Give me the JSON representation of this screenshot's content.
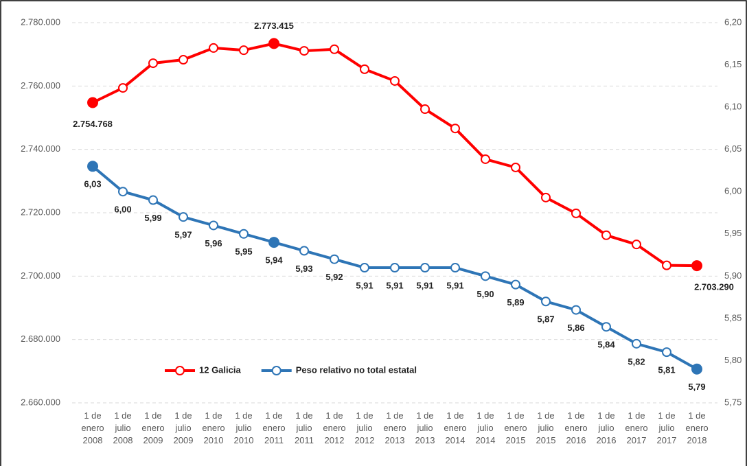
{
  "chart_data": {
    "type": "line",
    "categories": [
      "1 de enero 2008",
      "1 de julio 2008",
      "1 de enero 2009",
      "1 de julio 2009",
      "1 de enero 2010",
      "1 de julio 2010",
      "1 de enero 2011",
      "1 de julio 2011",
      "1 de enero 2012",
      "1 de julio 2012",
      "1 de enero 2013",
      "1 de julio 2013",
      "1 de enero 2014",
      "1 de julio 2014",
      "1 de enero 2015",
      "1 de julio 2015",
      "1 de enero 2016",
      "1 de julio 2016",
      "1 de enero 2017",
      "1 de julio 2017",
      "1 de enero 2018"
    ],
    "series": [
      {
        "name": "12 Galicia",
        "color": "#ff0000",
        "values": [
          2754768,
          2759400,
          2767200,
          2768300,
          2772000,
          2771300,
          2773415,
          2771100,
          2771600,
          2765300,
          2761600,
          2752700,
          2746600,
          2736900,
          2734300,
          2724800,
          2719800,
          2712900,
          2710000,
          2703400,
          2703290
        ],
        "value_labels": [
          "2.754.768",
          null,
          null,
          null,
          null,
          null,
          "2.773.415",
          null,
          null,
          null,
          null,
          null,
          null,
          null,
          null,
          null,
          null,
          null,
          null,
          null,
          "2.703.290"
        ],
        "highlight": [
          0,
          6,
          20
        ]
      },
      {
        "name": "Peso relativo no total estatal",
        "color": "#2e75b6",
        "axis": "y2",
        "values": [
          6.03,
          6.0,
          5.99,
          5.97,
          5.96,
          5.95,
          5.94,
          5.93,
          5.92,
          5.91,
          5.91,
          5.91,
          5.91,
          5.9,
          5.89,
          5.87,
          5.86,
          5.84,
          5.82,
          5.81,
          5.79
        ],
        "value_labels": [
          "6,03",
          "6,00",
          "5,99",
          "5,97",
          "5,96",
          "5,95",
          "5,94",
          "5,93",
          "5,92",
          "5,91",
          "5,91",
          "5,91",
          "5,91",
          "5,90",
          "5,89",
          "5,87",
          "5,86",
          "5,84",
          "5,82",
          "5,81",
          "5,79"
        ],
        "highlight": [
          0,
          6,
          20
        ]
      }
    ],
    "ylim": [
      2660000,
      2780000
    ],
    "yticks": [
      {
        "value": 2660000,
        "label": "2.660.000"
      },
      {
        "value": 2680000,
        "label": "2.680.000"
      },
      {
        "value": 2700000,
        "label": "2.700.000"
      },
      {
        "value": 2720000,
        "label": "2.720.000"
      },
      {
        "value": 2740000,
        "label": "2.740.000"
      },
      {
        "value": 2760000,
        "label": "2.760.000"
      },
      {
        "value": 2780000,
        "label": "2.780.000"
      }
    ],
    "y2lim": [
      5.75,
      6.2
    ],
    "y2ticks": [
      {
        "value": 5.75,
        "label": "5,75"
      },
      {
        "value": 5.8,
        "label": "5,80"
      },
      {
        "value": 5.85,
        "label": "5,85"
      },
      {
        "value": 5.9,
        "label": "5,90"
      },
      {
        "value": 5.95,
        "label": "5,95"
      },
      {
        "value": 6.0,
        "label": "6,00"
      },
      {
        "value": 6.05,
        "label": "6,05"
      },
      {
        "value": 6.1,
        "label": "6,10"
      },
      {
        "value": 6.15,
        "label": "6,15"
      },
      {
        "value": 6.2,
        "label": "6,20"
      }
    ],
    "grid": true,
    "legend": "lower left"
  }
}
